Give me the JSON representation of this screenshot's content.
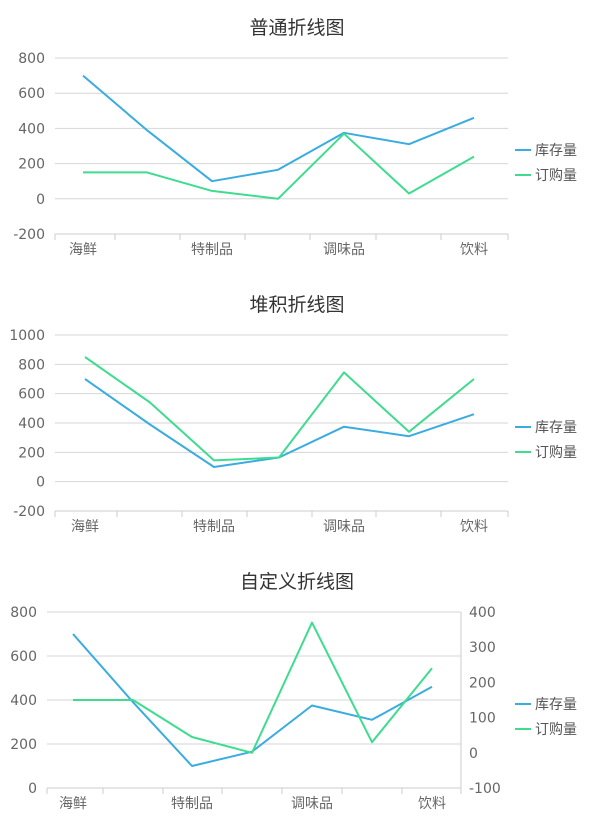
{
  "colors": {
    "inventory": "#3aace0",
    "orders": "#3fdc90"
  },
  "chart_data": [
    {
      "type": "line",
      "title": "普通折线图",
      "categories": [
        "海鲜",
        "",
        "特制品",
        "",
        "调味品",
        "",
        "饮料"
      ],
      "series": [
        {
          "name": "库存量",
          "values": [
            700,
            390,
            100,
            165,
            375,
            310,
            460
          ]
        },
        {
          "name": "订购量",
          "values": [
            150,
            150,
            45,
            0,
            370,
            30,
            240
          ]
        }
      ],
      "ylim": [
        -200,
        800
      ],
      "yticks": [
        800,
        600,
        400,
        200,
        0,
        -200
      ],
      "legend": [
        "库存量",
        "订购量"
      ],
      "legend_position": "right",
      "grid": true
    },
    {
      "type": "line",
      "title": "堆积折线图",
      "categories": [
        "海鲜",
        "",
        "特制品",
        "",
        "调味品",
        "",
        "饮料"
      ],
      "series": [
        {
          "name": "库存量",
          "values": [
            700,
            390,
            100,
            165,
            375,
            310,
            460
          ]
        },
        {
          "name": "订购量",
          "values": [
            150,
            150,
            45,
            0,
            370,
            30,
            240
          ]
        }
      ],
      "stacked": true,
      "ylim": [
        -200,
        1000
      ],
      "yticks": [
        1000,
        800,
        600,
        400,
        200,
        0,
        -200
      ],
      "legend": [
        "库存量",
        "订购量"
      ],
      "legend_position": "right",
      "grid": true
    },
    {
      "type": "line",
      "title": "自定义折线图",
      "categories": [
        "海鲜",
        "",
        "特制品",
        "",
        "调味品",
        "",
        "饮料"
      ],
      "series": [
        {
          "name": "库存量",
          "values": [
            700,
            390,
            100,
            165,
            375,
            310,
            460
          ],
          "axis": "left"
        },
        {
          "name": "订购量",
          "values": [
            150,
            150,
            45,
            0,
            370,
            30,
            240
          ],
          "axis": "right"
        }
      ],
      "ylim": [
        0,
        800
      ],
      "yticks": [
        800,
        600,
        400,
        200,
        0
      ],
      "y2lim": [
        -100,
        400
      ],
      "y2ticks": [
        400,
        300,
        200,
        100,
        0,
        -100
      ],
      "legend": [
        "库存量",
        "订购量"
      ],
      "legend_position": "right",
      "grid": true
    }
  ]
}
